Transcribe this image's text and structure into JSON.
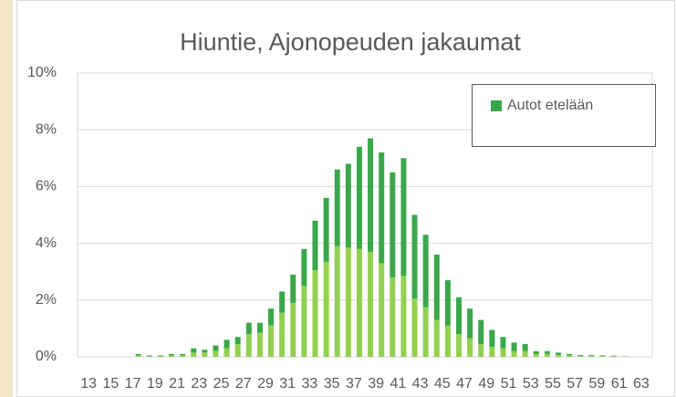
{
  "chart_data": {
    "type": "stacked_bar",
    "title": "Hiuntie, Ajonopeuden jakaumat",
    "categories": [
      "13",
      null,
      "15",
      null,
      "17",
      null,
      "19",
      null,
      "21",
      null,
      "23",
      null,
      "25",
      null,
      "27",
      null,
      "29",
      null,
      "31",
      null,
      "33",
      null,
      "35",
      null,
      "37",
      null,
      "39",
      null,
      "41",
      null,
      "43",
      null,
      "45",
      null,
      "47",
      null,
      "49",
      null,
      "51",
      null,
      "53",
      null,
      "55",
      null,
      "57",
      null,
      "59",
      null,
      "61",
      null,
      "63",
      null
    ],
    "series": [
      {
        "color": "#92d050",
        "values": [
          0,
          0,
          0,
          0,
          0,
          0.05,
          0.02,
          0.02,
          0.05,
          0.05,
          0.15,
          0.15,
          0.2,
          0.3,
          0.45,
          0.8,
          0.85,
          1.1,
          1.55,
          1.9,
          2.5,
          3.05,
          3.35,
          3.9,
          3.85,
          3.8,
          3.7,
          3.3,
          2.8,
          2.85,
          2.05,
          1.75,
          1.3,
          1.1,
          0.8,
          0.65,
          0.45,
          0.35,
          0.3,
          0.2,
          0.2,
          0.1,
          0.1,
          0.07,
          0.05,
          0.03,
          0.03,
          0.03,
          0.02,
          0.01,
          0,
          0
        ]
      },
      {
        "name": "Autot etelään",
        "color": "#3aa84a",
        "values": [
          0,
          0,
          0,
          0,
          0,
          0.05,
          0.03,
          0.03,
          0.05,
          0.05,
          0.15,
          0.1,
          0.2,
          0.3,
          0.25,
          0.4,
          0.35,
          0.6,
          0.75,
          1.0,
          1.3,
          1.75,
          2.25,
          2.7,
          2.95,
          3.6,
          4.0,
          3.9,
          3.7,
          4.15,
          2.95,
          2.55,
          2.3,
          1.6,
          1.3,
          1.05,
          0.85,
          0.6,
          0.4,
          0.3,
          0.25,
          0.1,
          0.1,
          0.08,
          0.05,
          0.03,
          0.03,
          0.02,
          0.02,
          0.01,
          0,
          0
        ]
      }
    ],
    "ylim": [
      0,
      10
    ],
    "yticks": [
      {
        "value": 0,
        "label": "0%"
      },
      {
        "value": 2,
        "label": "2%"
      },
      {
        "value": 4,
        "label": "4%"
      },
      {
        "value": 6,
        "label": "6%"
      },
      {
        "value": 8,
        "label": "8%"
      },
      {
        "value": 10,
        "label": "10%"
      }
    ],
    "grid": true,
    "legend": "upper right"
  }
}
